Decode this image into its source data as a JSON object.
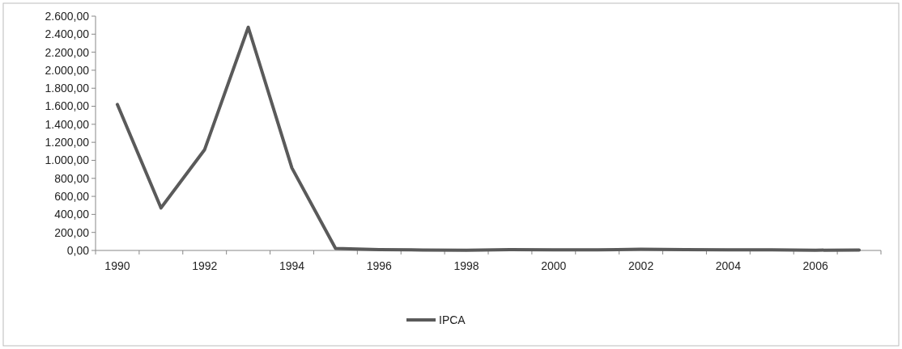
{
  "chart_data": {
    "type": "line",
    "categories": [
      "1990",
      null,
      "1992",
      null,
      "1994",
      null,
      "1996",
      null,
      "1998",
      null,
      "2000",
      null,
      "2002",
      null,
      "2004",
      null,
      "2006",
      null
    ],
    "series": [
      {
        "name": "IPCA",
        "color": "#5a5a5a",
        "values": [
          1620,
          472,
          1119,
          2477,
          916,
          22,
          9.6,
          5.2,
          1.7,
          8.9,
          6,
          7.7,
          12.5,
          9.3,
          7.6,
          5.7,
          3.1,
          4.5
        ]
      }
    ],
    "ylim": [
      0,
      2600
    ],
    "yticks": [
      {
        "value": 0,
        "label": "0,00"
      },
      {
        "value": 200,
        "label": "200,00"
      },
      {
        "value": 400,
        "label": "400,00"
      },
      {
        "value": 600,
        "label": "600,00"
      },
      {
        "value": 800,
        "label": "800,00"
      },
      {
        "value": 1000,
        "label": "1.000,00"
      },
      {
        "value": 1200,
        "label": "1.200,00"
      },
      {
        "value": 1400,
        "label": "1.400,00"
      },
      {
        "value": 1600,
        "label": "1.600,00"
      },
      {
        "value": 1800,
        "label": "1.800,00"
      },
      {
        "value": 2000,
        "label": "2.000,00"
      },
      {
        "value": 2200,
        "label": "2.200,00"
      },
      {
        "value": 2400,
        "label": "2.400,00"
      },
      {
        "value": 2600,
        "label": "2.600,00"
      }
    ],
    "grid": false,
    "legend": "bottom",
    "marker": "none",
    "line_style": "solid"
  }
}
